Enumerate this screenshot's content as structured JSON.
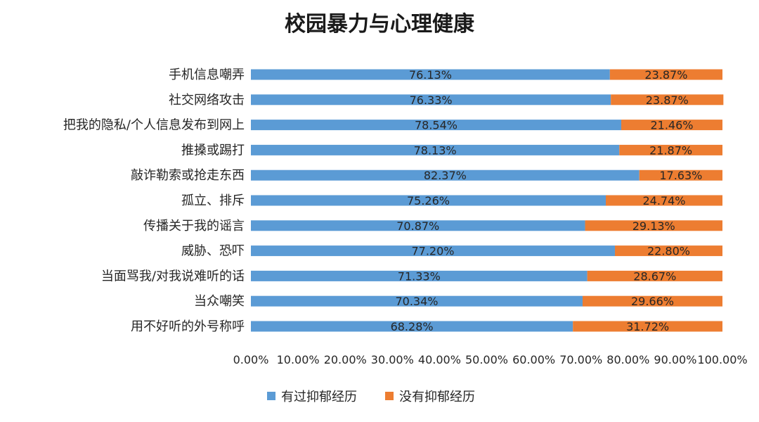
{
  "chart_data": {
    "type": "bar",
    "orientation": "horizontal",
    "stacked": true,
    "title": "校园暴力与心理健康",
    "categories": [
      "手机信息嘲弄",
      "社交网络攻击",
      "把我的隐私/个人信息发布到网上",
      "推搡或踢打",
      "敲诈勒索或抢走东西",
      "孤立、排斥",
      "传播关于我的谣言",
      "威胁、恐吓",
      "当面骂我/对我说难听的话",
      "当众嘲笑",
      "用不好听的外号称呼"
    ],
    "series": [
      {
        "name": "有过抑郁经历",
        "color": "#5b9bd5",
        "values": [
          76.13,
          76.33,
          78.54,
          78.13,
          82.37,
          75.26,
          70.87,
          77.2,
          71.33,
          70.34,
          68.28
        ],
        "labels": [
          "76.13%",
          "76.33%",
          "78.54%",
          "78.13%",
          "82.37%",
          "75.26%",
          "70.87%",
          "77.20%",
          "71.33%",
          "70.34%",
          "68.28%"
        ]
      },
      {
        "name": "没有抑郁经历",
        "color": "#ed7d31",
        "values": [
          23.87,
          23.87,
          21.46,
          21.87,
          17.63,
          24.74,
          29.13,
          22.8,
          28.67,
          29.66,
          31.72
        ],
        "labels": [
          "23.87%",
          "23.87%",
          "21.46%",
          "21.87%",
          "17.63%",
          "24.74%",
          "29.13%",
          "22.80%",
          "28.67%",
          "29.66%",
          "31.72%"
        ]
      }
    ],
    "xlim": [
      0,
      100
    ],
    "xticks": [
      0,
      10,
      20,
      30,
      40,
      50,
      60,
      70,
      80,
      90,
      100
    ],
    "xtick_labels": [
      "0.00%",
      "10.00%",
      "20.00%",
      "30.00%",
      "40.00%",
      "50.00%",
      "60.00%",
      "70.00%",
      "80.00%",
      "90.00%",
      "100.00%"
    ],
    "grid": false,
    "legend_position": "bottom"
  }
}
